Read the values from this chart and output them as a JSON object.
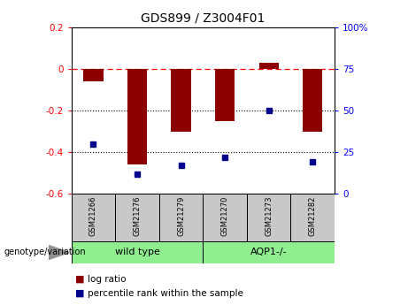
{
  "title": "GDS899 / Z3004F01",
  "samples": [
    "GSM21266",
    "GSM21276",
    "GSM21279",
    "GSM21270",
    "GSM21273",
    "GSM21282"
  ],
  "log_ratios": [
    -0.06,
    -0.46,
    -0.3,
    -0.25,
    0.03,
    -0.3
  ],
  "percentile_ranks": [
    30,
    12,
    17,
    22,
    50,
    19
  ],
  "bar_color": "#8B0000",
  "dot_color": "#00008B",
  "ylim_left": [
    -0.6,
    0.2
  ],
  "ylim_right": [
    0,
    100
  ],
  "yticks_left": [
    -0.6,
    -0.4,
    -0.2,
    0.0,
    0.2
  ],
  "yticks_right": [
    0,
    25,
    50,
    75,
    100
  ],
  "dotted_lines": [
    -0.2,
    -0.4
  ],
  "group_box_color": "#c8c8c8",
  "group_label_wt": "wild type",
  "group_label_aqp1": "AQP1-/-",
  "legend_label_bar": "log ratio",
  "legend_label_dot": "percentile rank within the sample",
  "genotype_label": "genotype/variation"
}
